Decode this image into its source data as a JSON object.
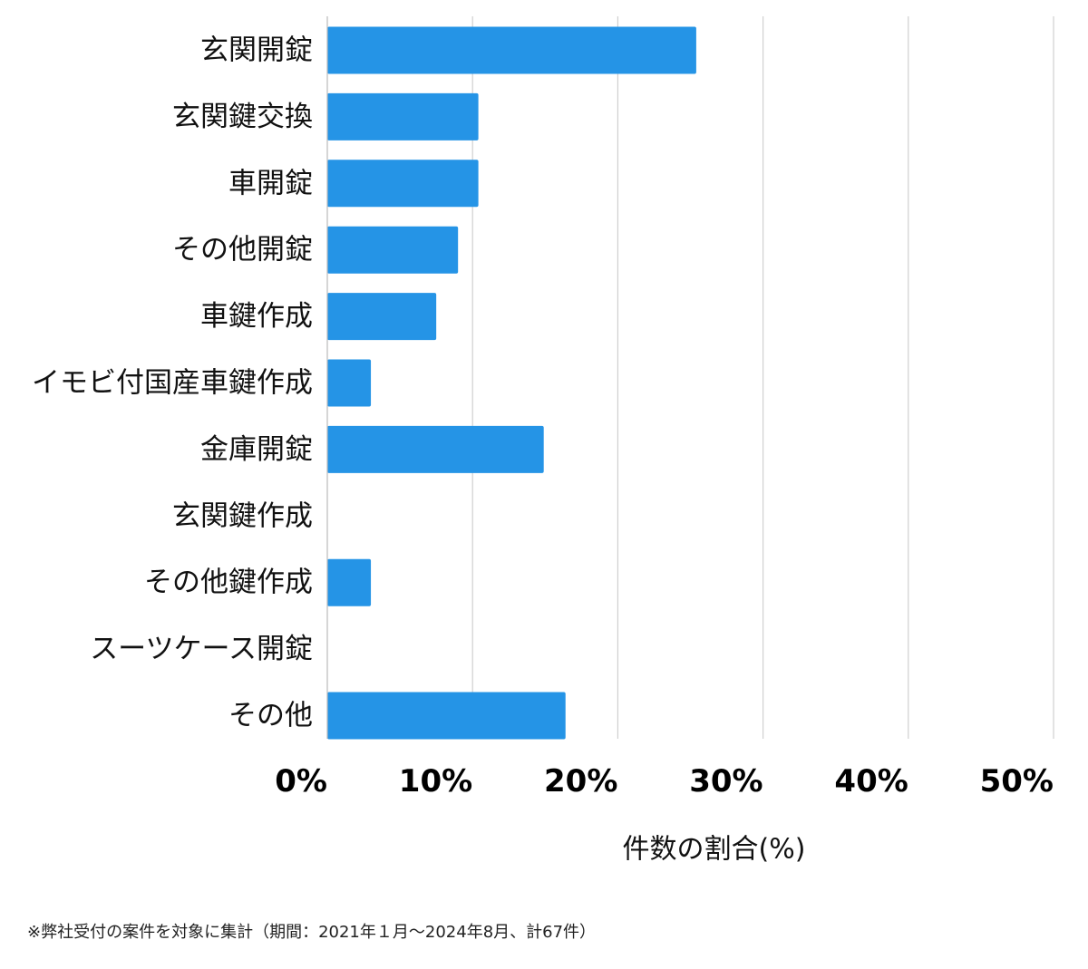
{
  "chart_data": {
    "type": "bar",
    "orientation": "horizontal",
    "categories": [
      "玄関開錠",
      "玄関鍵交換",
      "車開錠",
      "その他開錠",
      "車鍵作成",
      "イモビ付国産車鍵作成",
      "金庫開錠",
      "玄関鍵作成",
      "その他鍵作成",
      "スーツケース開錠",
      "その他"
    ],
    "values": [
      25.4,
      10.4,
      10.4,
      9.0,
      7.5,
      3.0,
      14.9,
      0,
      3.0,
      0,
      16.4
    ],
    "xlabel": "件数の割合(%)",
    "xlim": [
      0,
      50
    ],
    "xticks": [
      0,
      10,
      20,
      30,
      40,
      50
    ],
    "xtick_labels": [
      "0%",
      "10%",
      "20%",
      "30%",
      "40%",
      "50%"
    ],
    "grid": "vertical",
    "bar_color": "#2594e6"
  },
  "footnote": "※弊社受付の案件を対象に集計（期間：2021年１月〜2024年8月、計67件）"
}
